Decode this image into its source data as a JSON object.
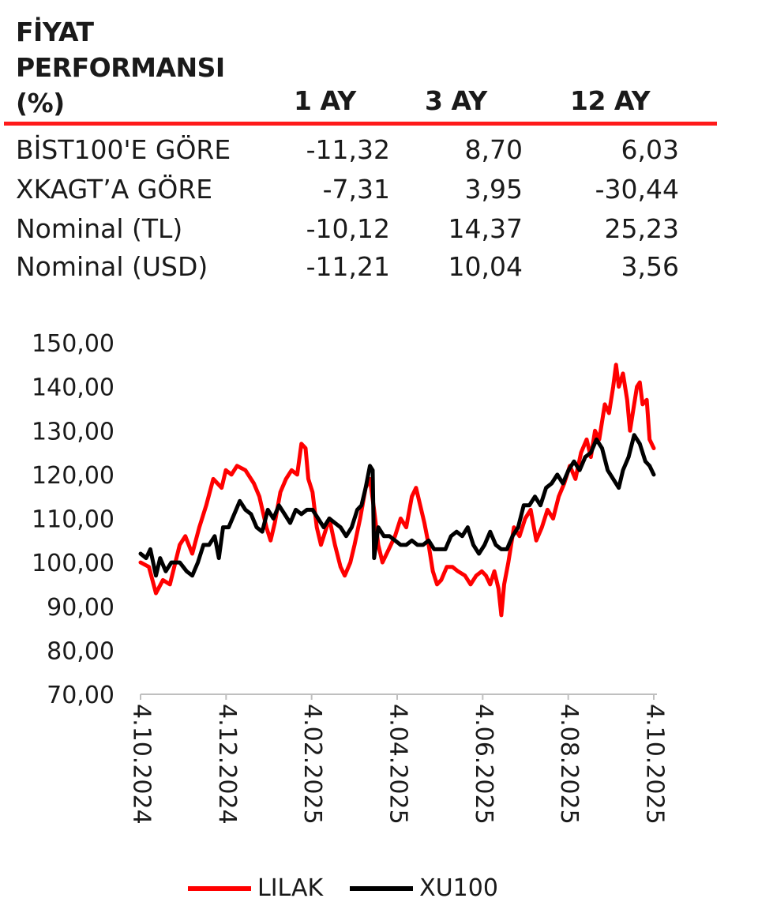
{
  "table": {
    "title_lines": [
      "FİYAT",
      "PERFORMANSI",
      "(%)"
    ],
    "columns": [
      "1 AY",
      "3 AY",
      "12 AY"
    ],
    "rows": [
      {
        "label": "BİST100'E GÖRE",
        "values": [
          "-11,32",
          "8,70",
          "6,03"
        ]
      },
      {
        "label": "XKAGT’A GÖRE",
        "values": [
          "-7,31",
          "3,95",
          "-30,44"
        ]
      },
      {
        "label": "Nominal (TL)",
        "values": [
          "-10,12",
          "14,37",
          "25,23"
        ]
      },
      {
        "label": "Nominal (USD)",
        "values": [
          "-11,21",
          "10,04",
          "3,56"
        ]
      }
    ],
    "rule_color": "#ff1a1a"
  },
  "chart_data": {
    "type": "line",
    "title": "",
    "xlabel": "",
    "ylabel": "",
    "ylim": [
      70,
      150
    ],
    "y_ticks": [
      "150,00",
      "140,00",
      "130,00",
      "120,00",
      "110,00",
      "100,00",
      "90,00",
      "80,00",
      "70,00"
    ],
    "y_tick_values": [
      150,
      140,
      130,
      120,
      110,
      100,
      90,
      80,
      70
    ],
    "x_ticks": [
      "4.10.2024",
      "4.12.2024",
      "4.02.2025",
      "4.04.2025",
      "4.06.2025",
      "4.08.2025",
      "4.10.2025"
    ],
    "x_range": [
      "2024-10-04",
      "2025-10-06"
    ],
    "grid": false,
    "legend_position": "bottom",
    "series": [
      {
        "name": "LILAK",
        "color": "#ff0000",
        "points": [
          [
            "2024-10-04",
            100
          ],
          [
            "2024-10-10",
            99
          ],
          [
            "2024-10-15",
            93
          ],
          [
            "2024-10-20",
            96
          ],
          [
            "2024-10-25",
            95
          ],
          [
            "2024-11-01",
            104
          ],
          [
            "2024-11-05",
            106
          ],
          [
            "2024-11-10",
            102
          ],
          [
            "2024-11-15",
            108
          ],
          [
            "2024-11-20",
            113
          ],
          [
            "2024-11-25",
            119
          ],
          [
            "2024-12-01",
            117
          ],
          [
            "2024-12-04",
            121
          ],
          [
            "2024-12-08",
            120
          ],
          [
            "2024-12-12",
            122
          ],
          [
            "2024-12-18",
            121
          ],
          [
            "2024-12-24",
            118
          ],
          [
            "2024-12-28",
            115
          ],
          [
            "2025-01-02",
            108
          ],
          [
            "2025-01-05",
            105
          ],
          [
            "2025-01-08",
            109
          ],
          [
            "2025-01-12",
            116
          ],
          [
            "2025-01-16",
            119
          ],
          [
            "2025-01-20",
            121
          ],
          [
            "2025-01-24",
            120
          ],
          [
            "2025-01-27",
            127
          ],
          [
            "2025-01-30",
            126
          ],
          [
            "2025-02-01",
            119
          ],
          [
            "2025-02-04",
            116
          ],
          [
            "2025-02-07",
            108
          ],
          [
            "2025-02-10",
            104
          ],
          [
            "2025-02-13",
            107
          ],
          [
            "2025-02-16",
            110
          ],
          [
            "2025-02-20",
            104
          ],
          [
            "2025-02-24",
            99
          ],
          [
            "2025-02-27",
            97
          ],
          [
            "2025-03-03",
            100
          ],
          [
            "2025-03-06",
            104
          ],
          [
            "2025-03-10",
            110
          ],
          [
            "2025-03-14",
            117
          ],
          [
            "2025-03-17",
            119
          ],
          [
            "2025-03-20",
            112
          ],
          [
            "2025-03-23",
            104
          ],
          [
            "2025-03-26",
            100
          ],
          [
            "2025-04-01",
            104
          ],
          [
            "2025-04-04",
            106
          ],
          [
            "2025-04-08",
            110
          ],
          [
            "2025-04-12",
            108
          ],
          [
            "2025-04-16",
            115
          ],
          [
            "2025-04-19",
            117
          ],
          [
            "2025-04-22",
            113
          ],
          [
            "2025-04-25",
            109
          ],
          [
            "2025-04-28",
            104
          ],
          [
            "2025-05-01",
            98
          ],
          [
            "2025-05-04",
            95
          ],
          [
            "2025-05-07",
            96
          ],
          [
            "2025-05-11",
            99
          ],
          [
            "2025-05-15",
            99
          ],
          [
            "2025-05-19",
            98
          ],
          [
            "2025-05-24",
            97
          ],
          [
            "2025-05-28",
            95
          ],
          [
            "2025-06-01",
            97
          ],
          [
            "2025-06-05",
            98
          ],
          [
            "2025-06-08",
            97
          ],
          [
            "2025-06-11",
            95
          ],
          [
            "2025-06-14",
            98
          ],
          [
            "2025-06-17",
            94
          ],
          [
            "2025-06-19",
            88
          ],
          [
            "2025-06-21",
            95
          ],
          [
            "2025-06-24",
            100
          ],
          [
            "2025-06-28",
            108
          ],
          [
            "2025-07-02",
            106
          ],
          [
            "2025-07-06",
            110
          ],
          [
            "2025-07-10",
            112
          ],
          [
            "2025-07-14",
            105
          ],
          [
            "2025-07-18",
            108
          ],
          [
            "2025-07-22",
            112
          ],
          [
            "2025-07-26",
            110
          ],
          [
            "2025-07-30",
            115
          ],
          [
            "2025-08-03",
            118
          ],
          [
            "2025-08-07",
            122
          ],
          [
            "2025-08-11",
            119
          ],
          [
            "2025-08-15",
            125
          ],
          [
            "2025-08-19",
            128
          ],
          [
            "2025-08-22",
            124
          ],
          [
            "2025-08-25",
            130
          ],
          [
            "2025-08-28",
            128
          ],
          [
            "2025-09-01",
            136
          ],
          [
            "2025-09-04",
            134
          ],
          [
            "2025-09-07",
            140
          ],
          [
            "2025-09-09",
            145
          ],
          [
            "2025-09-11",
            140
          ],
          [
            "2025-09-14",
            143
          ],
          [
            "2025-09-17",
            137
          ],
          [
            "2025-09-19",
            130
          ],
          [
            "2025-09-21",
            134
          ],
          [
            "2025-09-24",
            140
          ],
          [
            "2025-09-26",
            141
          ],
          [
            "2025-09-28",
            136
          ],
          [
            "2025-10-01",
            137
          ],
          [
            "2025-10-03",
            128
          ],
          [
            "2025-10-06",
            126
          ]
        ]
      },
      {
        "name": "XU100",
        "color": "#000000",
        "points": [
          [
            "2024-10-04",
            102
          ],
          [
            "2024-10-08",
            101
          ],
          [
            "2024-10-11",
            103
          ],
          [
            "2024-10-15",
            97
          ],
          [
            "2024-10-18",
            101
          ],
          [
            "2024-10-22",
            98
          ],
          [
            "2024-10-26",
            100
          ],
          [
            "2024-11-01",
            100
          ],
          [
            "2024-11-06",
            98
          ],
          [
            "2024-11-10",
            97
          ],
          [
            "2024-11-14",
            100
          ],
          [
            "2024-11-18",
            104
          ],
          [
            "2024-11-22",
            104
          ],
          [
            "2024-11-26",
            106
          ],
          [
            "2024-11-29",
            101
          ],
          [
            "2024-12-02",
            108
          ],
          [
            "2024-12-06",
            108
          ],
          [
            "2024-12-10",
            111
          ],
          [
            "2024-12-14",
            114
          ],
          [
            "2024-12-18",
            112
          ],
          [
            "2024-12-22",
            111
          ],
          [
            "2024-12-26",
            108
          ],
          [
            "2024-12-30",
            107
          ],
          [
            "2025-01-03",
            112
          ],
          [
            "2025-01-07",
            110
          ],
          [
            "2025-01-11",
            113
          ],
          [
            "2025-01-15",
            111
          ],
          [
            "2025-01-19",
            109
          ],
          [
            "2025-01-23",
            112
          ],
          [
            "2025-01-27",
            111
          ],
          [
            "2025-01-31",
            112
          ],
          [
            "2025-02-04",
            112
          ],
          [
            "2025-02-08",
            110
          ],
          [
            "2025-02-12",
            108
          ],
          [
            "2025-02-16",
            110
          ],
          [
            "2025-02-20",
            109
          ],
          [
            "2025-02-24",
            108
          ],
          [
            "2025-02-28",
            106
          ],
          [
            "2025-03-04",
            108
          ],
          [
            "2025-03-08",
            112
          ],
          [
            "2025-03-11",
            113
          ],
          [
            "2025-03-14",
            117
          ],
          [
            "2025-03-17",
            122
          ],
          [
            "2025-03-19",
            121
          ],
          [
            "2025-03-20",
            101
          ],
          [
            "2025-03-23",
            108
          ],
          [
            "2025-03-27",
            106
          ],
          [
            "2025-03-31",
            106
          ],
          [
            "2025-04-04",
            105
          ],
          [
            "2025-04-08",
            104
          ],
          [
            "2025-04-12",
            104
          ],
          [
            "2025-04-16",
            105
          ],
          [
            "2025-04-20",
            104
          ],
          [
            "2025-04-24",
            104
          ],
          [
            "2025-04-28",
            105
          ],
          [
            "2025-05-02",
            103
          ],
          [
            "2025-05-06",
            103
          ],
          [
            "2025-05-10",
            103
          ],
          [
            "2025-05-14",
            106
          ],
          [
            "2025-05-18",
            107
          ],
          [
            "2025-05-22",
            106
          ],
          [
            "2025-05-26",
            108
          ],
          [
            "2025-05-30",
            104
          ],
          [
            "2025-06-03",
            102
          ],
          [
            "2025-06-07",
            104
          ],
          [
            "2025-06-11",
            107
          ],
          [
            "2025-06-15",
            104
          ],
          [
            "2025-06-19",
            103
          ],
          [
            "2025-06-23",
            103
          ],
          [
            "2025-06-27",
            106
          ],
          [
            "2025-07-01",
            108
          ],
          [
            "2025-07-05",
            113
          ],
          [
            "2025-07-09",
            113
          ],
          [
            "2025-07-13",
            115
          ],
          [
            "2025-07-17",
            113
          ],
          [
            "2025-07-21",
            117
          ],
          [
            "2025-07-25",
            118
          ],
          [
            "2025-07-29",
            120
          ],
          [
            "2025-08-02",
            118
          ],
          [
            "2025-08-06",
            121
          ],
          [
            "2025-08-10",
            123
          ],
          [
            "2025-08-14",
            121
          ],
          [
            "2025-08-18",
            124
          ],
          [
            "2025-08-22",
            125
          ],
          [
            "2025-08-26",
            128
          ],
          [
            "2025-08-30",
            126
          ],
          [
            "2025-09-03",
            121
          ],
          [
            "2025-09-07",
            119
          ],
          [
            "2025-09-11",
            117
          ],
          [
            "2025-09-14",
            121
          ],
          [
            "2025-09-18",
            124
          ],
          [
            "2025-09-22",
            129
          ],
          [
            "2025-09-26",
            127
          ],
          [
            "2025-09-30",
            123
          ],
          [
            "2025-10-03",
            122
          ],
          [
            "2025-10-06",
            120
          ]
        ]
      }
    ]
  }
}
